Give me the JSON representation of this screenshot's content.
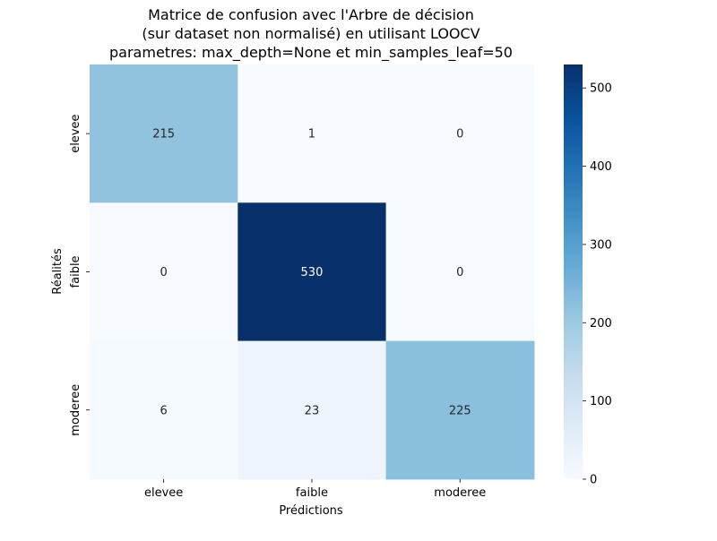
{
  "chart_data": {
    "type": "heatmap",
    "title_lines": [
      "Matrice de confusion avec l'Arbre de décision",
      "(sur dataset non normalisé) en utilisant LOOCV",
      "parametres: max_depth=None et min_samples_leaf=50"
    ],
    "xlabel": "Prédictions",
    "ylabel": "Réalités",
    "x_categories": [
      "elevee",
      "faible",
      "moderee"
    ],
    "y_categories": [
      "elevee",
      "faible",
      "moderee"
    ],
    "matrix": [
      [
        215,
        1,
        0
      ],
      [
        0,
        530,
        0
      ],
      [
        6,
        23,
        225
      ]
    ],
    "colorbar": {
      "min": 0,
      "max": 530,
      "ticks": [
        0,
        100,
        200,
        300,
        400,
        500
      ],
      "colormap": "Blues"
    },
    "colors": {
      "low": "#f7fbff",
      "high": "#08306b"
    }
  }
}
